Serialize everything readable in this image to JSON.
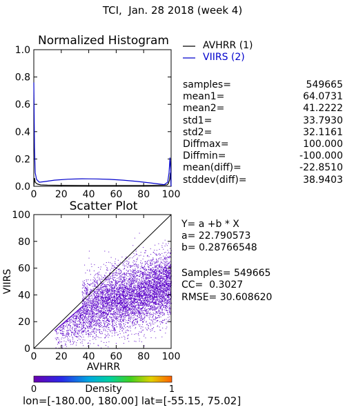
{
  "page_title": "TCI,  Jan. 28 2018 (week 4)",
  "coverage": {
    "lon_label": "lon=",
    "lon_range": "[-180.00, 180.00]",
    "lat_label": "lat=",
    "lat_range": "[-55.15, 75.02]"
  },
  "stats": [
    {
      "key": "samples=",
      "value": "549665"
    },
    {
      "key": "mean1=",
      "value": "64.0731"
    },
    {
      "key": "mean2=",
      "value": "41.2222"
    },
    {
      "key": "std1=",
      "value": "33.7930"
    },
    {
      "key": "std2=",
      "value": "32.1161"
    },
    {
      "key": "Diffmax=",
      "value": "100.000"
    },
    {
      "key": "Diffmin=",
      "value": "-100.000"
    },
    {
      "key": "mean(diff)=",
      "value": "-22.8510"
    },
    {
      "key": "stddev(diff)=",
      "value": "38.9403"
    }
  ],
  "regression": {
    "equation": "Y= a +b * X",
    "a_line": "a= 22.790573",
    "b_line": "b= 0.28766548",
    "samples_line": "Samples= 549665",
    "cc_line": "CC=  0.3027",
    "rmse_line": "RMSE= 30.608620"
  },
  "colorbar": {
    "label": "Density",
    "min_label": "0",
    "max_label": "1"
  },
  "colors": {
    "avhrr": "#000000",
    "viirs": "#0000cc",
    "scatter": "#5a00c8",
    "axes": "#000000"
  },
  "chart_data": [
    {
      "type": "line",
      "title": "Normalized Histogram",
      "xlim": [
        0,
        100
      ],
      "ylim": [
        0,
        1.0
      ],
      "xticks": [
        "0",
        "20",
        "40",
        "60",
        "80",
        "100"
      ],
      "yticks": [
        "0.0",
        "0.2",
        "0.4",
        "0.6",
        "0.8",
        "1.0"
      ],
      "series": [
        {
          "name": "AVHRR (1)",
          "color": "#000000",
          "x": [
            0,
            0.5,
            1,
            2,
            3,
            5,
            10,
            20,
            40,
            60,
            80,
            95,
            97,
            98,
            99,
            99.5,
            100
          ],
          "y": [
            0.0,
            0.06,
            0.03,
            0.02,
            0.015,
            0.01,
            0.008,
            0.007,
            0.006,
            0.006,
            0.006,
            0.008,
            0.01,
            0.02,
            0.05,
            0.1,
            0.0
          ]
        },
        {
          "name": "VIIRS (2)",
          "color": "#0000cc",
          "x": [
            0,
            0.5,
            1,
            2,
            4,
            8,
            15,
            25,
            35,
            45,
            55,
            65,
            75,
            85,
            95,
            97.5,
            98.5,
            99.2,
            99.7,
            100
          ],
          "y": [
            0.76,
            0.28,
            0.1,
            0.05,
            0.03,
            0.035,
            0.045,
            0.052,
            0.055,
            0.054,
            0.051,
            0.045,
            0.036,
            0.025,
            0.012,
            0.03,
            0.1,
            0.21,
            0.12,
            0.0
          ]
        }
      ]
    },
    {
      "type": "scatter",
      "title": "Scatter Plot",
      "xlabel": "AVHRR",
      "ylabel": "VIIRS",
      "xlim": [
        0,
        100
      ],
      "ylim": [
        0,
        100
      ],
      "xticks": [
        "0",
        "20",
        "40",
        "60",
        "80",
        "100"
      ],
      "yticks": [
        "0",
        "20",
        "40",
        "60",
        "80",
        "100"
      ],
      "one_to_one_line": true,
      "regression_line": {
        "a": 22.790573,
        "b": 0.28766548,
        "shown": false
      },
      "point_cloud": {
        "x_mean": 64.0731,
        "y_mean": 41.2222,
        "x_std": 33.793,
        "y_std": 32.1161,
        "cc": 0.3027
      }
    }
  ]
}
